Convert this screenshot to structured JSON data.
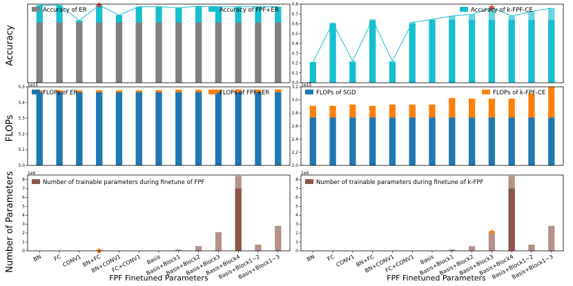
{
  "figure": {
    "ylabels": [
      "Accuracy",
      "FLOPs",
      "Number of Parameters"
    ],
    "xlabel": "FPF Finetuned Parameters"
  },
  "chart_data": [
    {
      "id": "acc-er",
      "type": "bar",
      "categories": [
        "BN",
        "FC",
        "CONV1",
        "BN+FC",
        "BN+CONV1",
        "FC+CONV1",
        "Basis",
        "Basis+Block1",
        "Basis+Block2",
        "Basis+Block3",
        "Basis+Block4",
        "Basis+Block1~2",
        "Basis+Block1~3"
      ],
      "series": [
        {
          "name": "Accuracy of ER",
          "color": "#808080",
          "values": [
            0.575,
            0.575,
            0.575,
            0.575,
            0.575,
            0.575,
            0.575,
            0.575,
            0.575,
            0.575,
            0.575,
            0.575,
            0.575
          ]
        },
        {
          "name": "Accuracy of FPF+ER",
          "color": "#17becf",
          "values": [
            0.74,
            0.74,
            0.595,
            0.74,
            0.645,
            0.725,
            0.725,
            0.715,
            0.73,
            0.725,
            0.725,
            0.725,
            0.725
          ]
        }
      ],
      "line": [
        0.74,
        0.74,
        0.595,
        0.74,
        0.645,
        0.725,
        0.725,
        0.715,
        0.73,
        0.725,
        0.725,
        0.725,
        0.725
      ],
      "star_index": 3,
      "ylim": [
        0,
        0.75
      ],
      "yticks": [],
      "sci": "",
      "legend": "top-spread"
    },
    {
      "id": "acc-kfpf",
      "type": "bar",
      "categories": [
        "BN",
        "FC",
        "CONV1",
        "BN+FC",
        "BN+CONV1",
        "FC+CONV1",
        "Basis",
        "Basis+Block1",
        "Basis+Block2",
        "Basis+Block3",
        "Basis+Block4",
        "Basis+Block1~2",
        "Basis+Block1~3"
      ],
      "series": [
        {
          "name": "Accuracy of k-FPF-CE",
          "color": "#17becf",
          "values": [
            0.21,
            0.61,
            0.22,
            0.645,
            0.22,
            0.615,
            0.645,
            0.68,
            0.695,
            0.765,
            0.68,
            0.725,
            0.76
          ]
        }
      ],
      "line": [
        0.21,
        0.61,
        0.22,
        0.645,
        0.22,
        0.615,
        0.645,
        0.68,
        0.695,
        0.765,
        0.68,
        0.725,
        0.76
      ],
      "split_values": [
        0.21,
        0.6,
        0.21,
        0.63,
        0.21,
        0.6,
        0.64,
        0.64,
        0.64,
        0.64,
        0.64,
        0.64,
        0.64
      ],
      "star_index": 9,
      "ylim": [
        0,
        0.8
      ],
      "yticks": [
        "0.0",
        "0.1",
        "0.2",
        "0.3",
        "0.4",
        "0.5",
        "0.6",
        "0.7",
        "0.8"
      ],
      "sci": "",
      "legend": "top-right"
    },
    {
      "id": "flops-er",
      "type": "bar",
      "categories": [
        "BN",
        "FC",
        "CONV1",
        "BN+FC",
        "BN+CONV1",
        "FC+CONV1",
        "Basis",
        "Basis+Block1",
        "Basis+Block2",
        "Basis+Block3",
        "Basis+Block4",
        "Basis+Block1~2",
        "Basis+Block1~3"
      ],
      "series": [
        {
          "name": "FLOPs of ER",
          "color": "#1f77b4",
          "values": [
            5.465,
            5.465,
            5.465,
            5.465,
            5.465,
            5.465,
            5.465,
            5.465,
            5.465,
            5.465,
            5.465,
            5.465,
            5.465
          ]
        },
        {
          "name": "FLOPs of FPF+ER",
          "color": "#ff7f0e",
          "values": [
            5.478,
            5.478,
            5.477,
            5.478,
            5.477,
            5.477,
            5.478,
            5.482,
            5.481,
            5.481,
            5.484,
            5.482,
            5.484
          ]
        }
      ],
      "ylim": [
        5.0,
        5.5
      ],
      "yticks": [
        "5.0",
        "5.1",
        "5.2",
        "5.3",
        "5.4",
        "5.5"
      ],
      "sci": "1e15",
      "legend": "top-spread"
    },
    {
      "id": "flops-kfpf",
      "type": "bar",
      "categories": [
        "BN",
        "FC",
        "CONV1",
        "BN+FC",
        "BN+CONV1",
        "FC+CONV1",
        "Basis",
        "Basis+Block1",
        "Basis+Block2",
        "Basis+Block3",
        "Basis+Block4",
        "Basis+Block1~2",
        "Basis+Block1~3"
      ],
      "series": [
        {
          "name": "FLOPs of SGD",
          "color": "#1f77b4",
          "values": [
            2.73,
            2.73,
            2.73,
            2.73,
            2.73,
            2.73,
            2.73,
            2.73,
            2.73,
            2.73,
            2.73,
            2.73,
            2.73
          ]
        },
        {
          "name": "FLOPs of k-FPF-CE",
          "color": "#ff7f0e",
          "values": [
            2.91,
            2.91,
            2.93,
            2.91,
            2.93,
            2.93,
            2.93,
            3.03,
            3.02,
            3.02,
            3.02,
            3.1,
            3.2
          ]
        }
      ],
      "ylim": [
        2.0,
        3.2
      ],
      "yticks": [
        "2.0",
        "2.2",
        "2.4",
        "2.6",
        "2.8",
        "3.0",
        "3.2"
      ],
      "sci": "1e15",
      "legend": "top-spread"
    },
    {
      "id": "params-fpf",
      "type": "bar",
      "categories": [
        "BN",
        "FC",
        "CONV1",
        "BN+FC",
        "BN+CONV1",
        "FC+CONV1",
        "Basis",
        "Basis+Block1",
        "Basis+Block2",
        "Basis+Block3",
        "Basis+Block4",
        "Basis+Block1~2",
        "Basis+Block1~3"
      ],
      "series": [
        {
          "name": "Number of trainable parameters during finetune of FPF",
          "color": "#8c564b",
          "values": [
            0.0,
            0.005,
            0.01,
            0.01,
            0.02,
            0.015,
            0.02,
            0.15,
            0.53,
            2.1,
            8.4,
            0.7,
            2.8
          ]
        }
      ],
      "split_values": [
        0,
        0,
        0,
        0,
        0,
        0,
        0,
        0,
        0,
        0,
        7.0,
        0,
        0
      ],
      "star_index": 3,
      "ylim": [
        0,
        8.5
      ],
      "yticks": [
        "0",
        "1",
        "2",
        "3",
        "4",
        "5",
        "6",
        "7",
        "8"
      ],
      "sci": "1e6",
      "legend": "top-left"
    },
    {
      "id": "params-kfpf",
      "type": "bar",
      "categories": [
        "BN",
        "FC",
        "CONV1",
        "BN+FC",
        "BN+CONV1",
        "FC+CONV1",
        "Basis",
        "Basis+Block1",
        "Basis+Block2",
        "Basis+Block3",
        "Basis+Block4",
        "Basis+Block1~2",
        "Basis+Block1~3"
      ],
      "series": [
        {
          "name": "Number of trainable parameters during finetune of k-FPF",
          "color": "#8c564b",
          "values": [
            0.0,
            0.005,
            0.01,
            0.01,
            0.02,
            0.015,
            0.02,
            0.15,
            0.53,
            2.1,
            8.4,
            0.7,
            2.8
          ]
        }
      ],
      "split_values": [
        0,
        0,
        0,
        0,
        0,
        0,
        0,
        0,
        0,
        0,
        7.0,
        0,
        0
      ],
      "star_index": 9,
      "ylim": [
        0,
        8.5
      ],
      "yticks": [
        "0",
        "1",
        "2",
        "3",
        "4",
        "5",
        "6",
        "7",
        "8"
      ],
      "sci": "1e6",
      "legend": "top-left"
    }
  ]
}
